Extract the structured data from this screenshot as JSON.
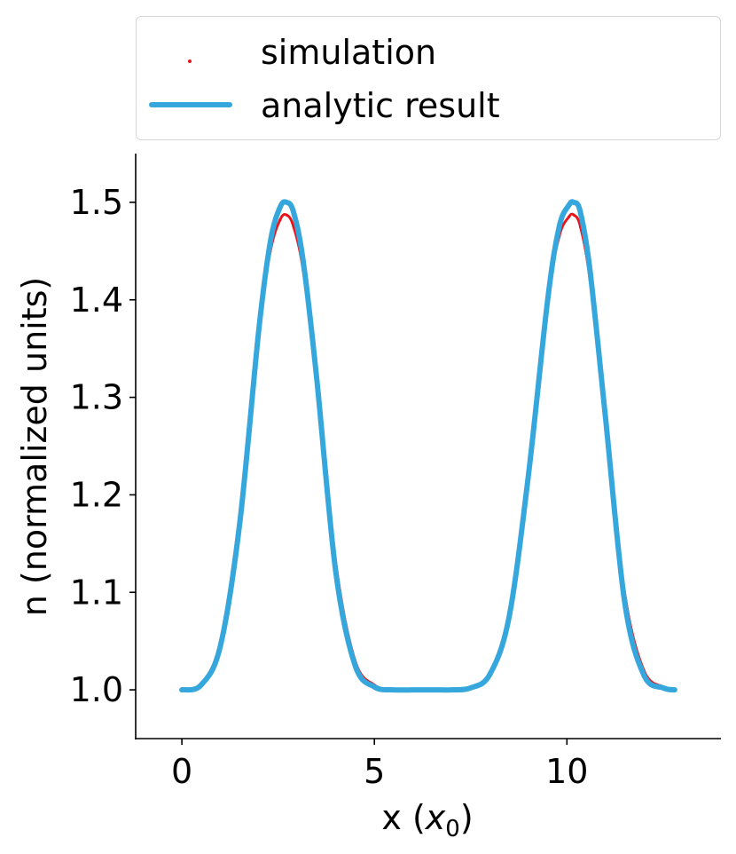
{
  "chart_data": {
    "type": "line",
    "title": "",
    "xlabel": "x",
    "xlabel_unit_base": "x",
    "xlabel_unit_sub": "0",
    "ylabel": "n (normalized units)",
    "xlim": [
      -1.2,
      14.0
    ],
    "ylim": [
      0.95,
      1.55
    ],
    "xticks": [
      0,
      5,
      10
    ],
    "xtick_labels": [
      "0",
      "5",
      "10"
    ],
    "yticks": [
      1.0,
      1.1,
      1.2,
      1.3,
      1.4,
      1.5
    ],
    "ytick_labels": [
      "1.0",
      "1.1",
      "1.2",
      "1.3",
      "1.4",
      "1.5"
    ],
    "grid": false,
    "legend_position": "top (above plot)",
    "series": [
      {
        "name": "simulation",
        "style": "points",
        "color": "#e8151b",
        "x": [
          0.0,
          0.5,
          1.0,
          1.5,
          2.0,
          2.3,
          2.55,
          2.72,
          2.9,
          3.15,
          3.5,
          4.0,
          4.5,
          5.0,
          5.5,
          6.0,
          6.5,
          7.0,
          7.5,
          8.0,
          8.5,
          9.0,
          9.5,
          9.8,
          10.05,
          10.18,
          10.35,
          10.6,
          11.0,
          11.5,
          12.0,
          12.5,
          12.8
        ],
        "y": [
          1.0,
          1.006,
          1.05,
          1.18,
          1.37,
          1.45,
          1.482,
          1.487,
          1.475,
          1.43,
          1.32,
          1.13,
          1.03,
          1.005,
          1.0,
          1.0,
          1.0,
          1.0,
          1.002,
          1.018,
          1.08,
          1.22,
          1.4,
          1.465,
          1.485,
          1.487,
          1.475,
          1.42,
          1.28,
          1.1,
          1.02,
          1.003,
          1.0
        ]
      },
      {
        "name": "analytic result",
        "style": "line",
        "color": "#36a7dc",
        "x": [
          0.0,
          0.5,
          1.0,
          1.5,
          2.0,
          2.3,
          2.55,
          2.72,
          2.9,
          3.15,
          3.5,
          4.0,
          4.5,
          5.0,
          5.5,
          6.0,
          6.5,
          7.0,
          7.5,
          8.0,
          8.5,
          9.0,
          9.5,
          9.8,
          10.05,
          10.18,
          10.35,
          10.6,
          11.0,
          11.5,
          12.0,
          12.5,
          12.8
        ],
        "y": [
          1.0,
          1.005,
          1.045,
          1.17,
          1.37,
          1.46,
          1.495,
          1.5,
          1.49,
          1.44,
          1.32,
          1.12,
          1.025,
          1.003,
          1.0,
          1.0,
          1.0,
          1.0,
          1.002,
          1.016,
          1.075,
          1.22,
          1.4,
          1.475,
          1.497,
          1.5,
          1.49,
          1.43,
          1.28,
          1.09,
          1.015,
          1.002,
          1.0
        ]
      }
    ]
  }
}
